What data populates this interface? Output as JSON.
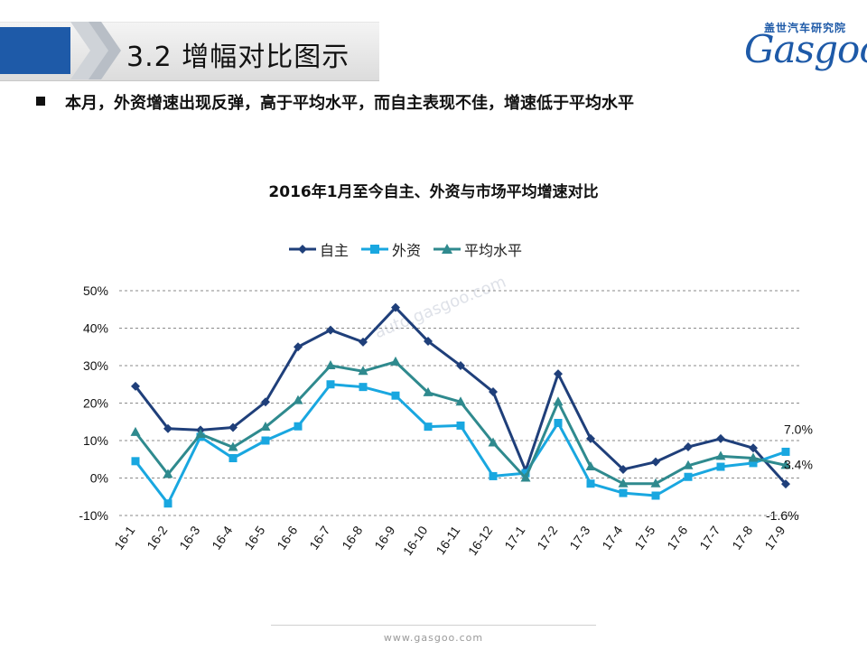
{
  "header": {
    "title": "3.2  增幅对比图示"
  },
  "logo": {
    "cn": "盖世汽车研究院",
    "en": "Gasgoo"
  },
  "bullet": {
    "text": "本月，外资增速出现反弹，高于平均水平，而自主表现不佳，增速低于平均水平"
  },
  "footer": {
    "url": "www.gasgoo.com"
  },
  "watermark": {
    "text": "auto.gasgoo.com"
  },
  "colors": {
    "zizhu": "#1f3f7a",
    "waizi": "#19a7e0",
    "pingjun": "#2f8a8e",
    "grid": "#8a8a8a"
  },
  "chart_data": {
    "type": "line",
    "title": "2016年1月至今自主、外资与市场平均增速对比",
    "categories": [
      "16-1",
      "16-2",
      "16-3",
      "16-4",
      "16-5",
      "16-6",
      "16-7",
      "16-8",
      "16-9",
      "16-10",
      "16-11",
      "16-12",
      "17-1",
      "17-2",
      "17-3",
      "17-4",
      "17-5",
      "17-6",
      "17-7",
      "17-8",
      "17-9"
    ],
    "series": [
      {
        "name": "自主",
        "marker": "diamond",
        "values": [
          24.5,
          13.2,
          12.8,
          13.5,
          20.3,
          35.0,
          39.5,
          36.3,
          45.5,
          36.5,
          30.0,
          23.0,
          2.0,
          27.8,
          10.5,
          2.3,
          4.3,
          8.3,
          10.5,
          8.0,
          -1.6
        ]
      },
      {
        "name": "外资",
        "marker": "square",
        "values": [
          4.5,
          -6.8,
          11.0,
          5.3,
          10.0,
          13.8,
          25.0,
          24.3,
          22.0,
          13.7,
          14.0,
          0.5,
          1.3,
          14.7,
          -1.5,
          -4.0,
          -4.7,
          0.3,
          3.0,
          4.0,
          7.0
        ]
      },
      {
        "name": "平均水平",
        "marker": "triangle",
        "values": [
          12.2,
          1.0,
          11.7,
          8.2,
          13.6,
          20.7,
          30.0,
          28.5,
          31.0,
          22.8,
          20.3,
          9.4,
          0.0,
          20.3,
          3.0,
          -1.5,
          -1.5,
          3.3,
          5.8,
          5.3,
          3.4
        ]
      }
    ],
    "y_ticks": [
      "-10%",
      "0%",
      "10%",
      "20%",
      "30%",
      "40%",
      "50%"
    ],
    "ylim": [
      -10,
      50
    ],
    "grid": true,
    "legend_position": "top",
    "data_labels": [
      {
        "series": "外资",
        "index": 20,
        "text": "7.0%"
      },
      {
        "series": "平均水平",
        "index": 20,
        "text": "3.4%"
      },
      {
        "series": "自主",
        "index": 20,
        "text": "-1.6%"
      }
    ]
  }
}
